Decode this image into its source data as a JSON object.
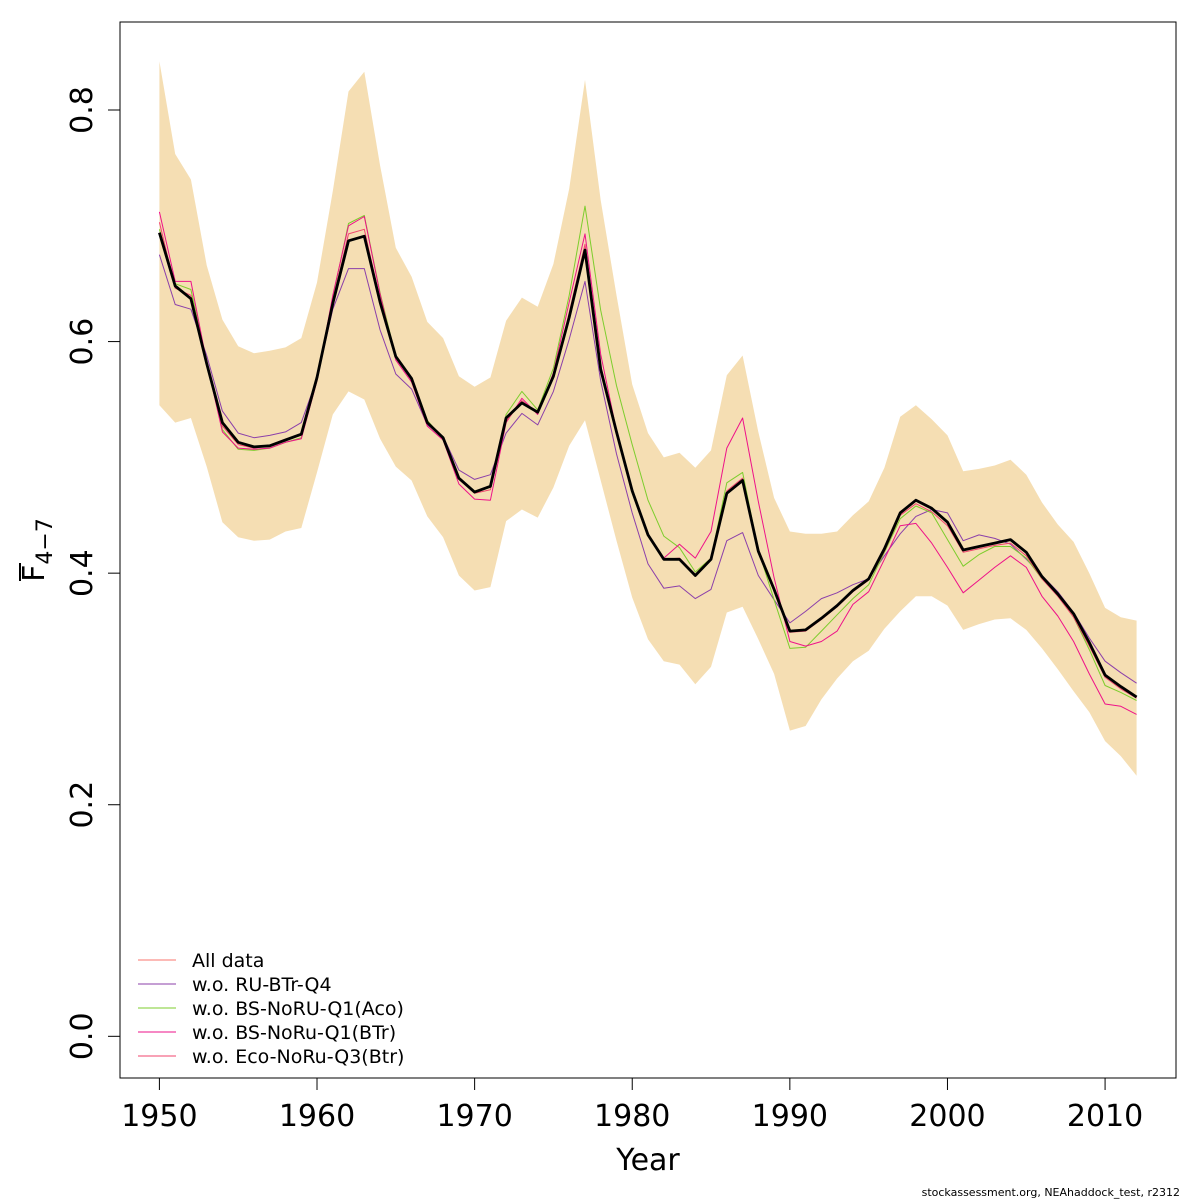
{
  "chart_data": {
    "type": "line",
    "xlabel": "Year",
    "ylabel_main": "F",
    "ylabel_sub": "4−7",
    "xlim": [
      1947.5,
      2014.5
    ],
    "ylim": [
      -0.036,
      0.876
    ],
    "x_ticks": [
      1950,
      1960,
      1970,
      1980,
      1990,
      2000,
      2010
    ],
    "y_ticks": [
      0.0,
      0.2,
      0.4,
      0.6,
      0.8
    ],
    "y_tick_labels": [
      "0.0",
      "0.2",
      "0.4",
      "0.6",
      "0.8"
    ],
    "grid": false,
    "legend_position": "bottom-left",
    "footer": "stockassessment.org, NEAhaddock_test, r2312",
    "x": [
      1950,
      1951,
      1952,
      1953,
      1954,
      1955,
      1956,
      1957,
      1958,
      1959,
      1960,
      1961,
      1962,
      1963,
      1964,
      1965,
      1966,
      1967,
      1968,
      1969,
      1970,
      1971,
      1972,
      1973,
      1974,
      1975,
      1976,
      1977,
      1978,
      1979,
      1980,
      1981,
      1982,
      1983,
      1984,
      1985,
      1986,
      1987,
      1988,
      1989,
      1990,
      1991,
      1992,
      1993,
      1994,
      1995,
      1996,
      1997,
      1998,
      1999,
      2000,
      2001,
      2002,
      2003,
      2004,
      2005,
      2006,
      2007,
      2008,
      2009,
      2010,
      2011,
      2012
    ],
    "band": {
      "color": "#F5DEB3",
      "upper": [
        0.842,
        0.762,
        0.74,
        0.666,
        0.619,
        0.596,
        0.59,
        0.592,
        0.595,
        0.603,
        0.651,
        0.73,
        0.816,
        0.833,
        0.752,
        0.681,
        0.656,
        0.617,
        0.603,
        0.57,
        0.561,
        0.569,
        0.618,
        0.638,
        0.63,
        0.667,
        0.732,
        0.826,
        0.722,
        0.64,
        0.563,
        0.521,
        0.5,
        0.504,
        0.491,
        0.506,
        0.571,
        0.588,
        0.522,
        0.465,
        0.436,
        0.434,
        0.434,
        0.436,
        0.45,
        0.462,
        0.491,
        0.535,
        0.545,
        0.533,
        0.519,
        0.488,
        0.49,
        0.493,
        0.498,
        0.485,
        0.461,
        0.442,
        0.427,
        0.4,
        0.37,
        0.362,
        0.359
      ],
      "lower": [
        0.545,
        0.53,
        0.534,
        0.492,
        0.444,
        0.431,
        0.428,
        0.429,
        0.436,
        0.439,
        0.487,
        0.537,
        0.557,
        0.55,
        0.516,
        0.492,
        0.48,
        0.449,
        0.431,
        0.398,
        0.385,
        0.388,
        0.445,
        0.455,
        0.448,
        0.474,
        0.51,
        0.532,
        0.48,
        0.428,
        0.379,
        0.343,
        0.324,
        0.321,
        0.304,
        0.319,
        0.366,
        0.371,
        0.343,
        0.313,
        0.264,
        0.268,
        0.291,
        0.309,
        0.324,
        0.333,
        0.352,
        0.367,
        0.38,
        0.38,
        0.372,
        0.351,
        0.356,
        0.36,
        0.361,
        0.351,
        0.335,
        0.317,
        0.298,
        0.28,
        0.255,
        0.242,
        0.225
      ]
    },
    "series": [
      {
        "name": "All data",
        "color": "#F8766D",
        "width": 1,
        "values": [
          0.694,
          0.648,
          0.637,
          0.581,
          0.53,
          0.513,
          0.509,
          0.51,
          0.515,
          0.52,
          0.569,
          0.633,
          0.687,
          0.691,
          0.634,
          0.587,
          0.568,
          0.53,
          0.517,
          0.482,
          0.47,
          0.475,
          0.534,
          0.547,
          0.539,
          0.57,
          0.621,
          0.679,
          0.576,
          0.522,
          0.471,
          0.433,
          0.412,
          0.412,
          0.398,
          0.412,
          0.469,
          0.48,
          0.419,
          0.386,
          0.35,
          0.351,
          0.361,
          0.372,
          0.385,
          0.395,
          0.421,
          0.452,
          0.463,
          0.456,
          0.444,
          0.42,
          0.423,
          0.426,
          0.429,
          0.418,
          0.397,
          0.382,
          0.365,
          0.34,
          0.312,
          0.302,
          0.293
        ]
      },
      {
        "name": "w.o. RU-BTr-Q4",
        "color": "#8B3FAA",
        "width": 1,
        "values": [
          0.675,
          0.632,
          0.628,
          0.588,
          0.54,
          0.521,
          0.517,
          0.519,
          0.522,
          0.53,
          0.568,
          0.628,
          0.663,
          0.663,
          0.61,
          0.572,
          0.559,
          0.528,
          0.518,
          0.489,
          0.481,
          0.485,
          0.521,
          0.538,
          0.528,
          0.557,
          0.602,
          0.652,
          0.566,
          0.503,
          0.452,
          0.408,
          0.387,
          0.389,
          0.378,
          0.386,
          0.428,
          0.435,
          0.398,
          0.377,
          0.357,
          0.367,
          0.378,
          0.383,
          0.39,
          0.395,
          0.415,
          0.434,
          0.449,
          0.455,
          0.452,
          0.428,
          0.433,
          0.43,
          0.425,
          0.412,
          0.398,
          0.384,
          0.366,
          0.344,
          0.324,
          0.314,
          0.305
        ]
      },
      {
        "name": "w.o. BS-NoRU-Q1(Aco)",
        "color": "#7CCD2C",
        "width": 1,
        "values": [
          0.697,
          0.65,
          0.645,
          0.582,
          0.524,
          0.507,
          0.506,
          0.508,
          0.513,
          0.517,
          0.566,
          0.638,
          0.702,
          0.709,
          0.642,
          0.587,
          0.568,
          0.532,
          0.516,
          0.482,
          0.471,
          0.474,
          0.537,
          0.557,
          0.541,
          0.577,
          0.64,
          0.717,
          0.627,
          0.562,
          0.511,
          0.463,
          0.432,
          0.422,
          0.401,
          0.413,
          0.478,
          0.487,
          0.42,
          0.377,
          0.335,
          0.336,
          0.35,
          0.364,
          0.378,
          0.39,
          0.418,
          0.447,
          0.458,
          0.452,
          0.429,
          0.406,
          0.416,
          0.423,
          0.423,
          0.413,
          0.395,
          0.382,
          0.362,
          0.334,
          0.303,
          0.297,
          0.29
        ]
      },
      {
        "name": "w.o. BS-NoRu-Q1(BTr)",
        "color": "#EE1289",
        "width": 1,
        "values": [
          0.712,
          0.652,
          0.652,
          0.582,
          0.522,
          0.508,
          0.507,
          0.508,
          0.513,
          0.516,
          0.566,
          0.64,
          0.7,
          0.708,
          0.641,
          0.584,
          0.565,
          0.527,
          0.515,
          0.477,
          0.464,
          0.463,
          0.53,
          0.551,
          0.537,
          0.573,
          0.634,
          0.693,
          0.589,
          0.523,
          0.47,
          0.434,
          0.413,
          0.425,
          0.413,
          0.436,
          0.508,
          0.534,
          0.462,
          0.396,
          0.341,
          0.337,
          0.341,
          0.35,
          0.373,
          0.384,
          0.412,
          0.441,
          0.443,
          0.426,
          0.405,
          0.383,
          0.394,
          0.405,
          0.415,
          0.405,
          0.38,
          0.363,
          0.341,
          0.313,
          0.287,
          0.285,
          0.278
        ]
      },
      {
        "name": "w.o. Eco-NoRu-Q3(Btr)",
        "color": "#F0466E",
        "width": 1,
        "values": [
          0.703,
          0.646,
          0.64,
          0.581,
          0.527,
          0.511,
          0.508,
          0.51,
          0.515,
          0.519,
          0.568,
          0.635,
          0.693,
          0.697,
          0.636,
          0.586,
          0.567,
          0.53,
          0.516,
          0.481,
          0.469,
          0.472,
          0.531,
          0.549,
          0.538,
          0.569,
          0.625,
          0.684,
          0.579,
          0.523,
          0.471,
          0.433,
          0.412,
          0.413,
          0.399,
          0.413,
          0.471,
          0.482,
          0.421,
          0.385,
          0.349,
          0.35,
          0.36,
          0.371,
          0.384,
          0.394,
          0.419,
          0.45,
          0.46,
          0.453,
          0.441,
          0.418,
          0.421,
          0.424,
          0.426,
          0.415,
          0.395,
          0.38,
          0.362,
          0.337,
          0.31,
          0.3,
          0.292
        ]
      },
      {
        "name": "",
        "color": "#000000",
        "width": 2.8,
        "values": [
          0.694,
          0.648,
          0.637,
          0.581,
          0.53,
          0.513,
          0.509,
          0.51,
          0.515,
          0.52,
          0.569,
          0.633,
          0.687,
          0.691,
          0.634,
          0.587,
          0.568,
          0.53,
          0.517,
          0.482,
          0.47,
          0.475,
          0.534,
          0.547,
          0.539,
          0.57,
          0.621,
          0.679,
          0.576,
          0.522,
          0.471,
          0.433,
          0.412,
          0.412,
          0.398,
          0.412,
          0.469,
          0.48,
          0.419,
          0.386,
          0.35,
          0.351,
          0.361,
          0.372,
          0.385,
          0.395,
          0.421,
          0.452,
          0.463,
          0.456,
          0.444,
          0.42,
          0.423,
          0.426,
          0.429,
          0.418,
          0.397,
          0.382,
          0.365,
          0.34,
          0.312,
          0.302,
          0.293
        ]
      }
    ],
    "legend": [
      {
        "label": "All data",
        "color": "#F8766D"
      },
      {
        "label": "w.o. RU-BTr-Q4",
        "color": "#8B3FAA"
      },
      {
        "label": "w.o. BS-NoRU-Q1(Aco)",
        "color": "#7CCD2C"
      },
      {
        "label": "w.o. BS-NoRu-Q1(BTr)",
        "color": "#EE1289"
      },
      {
        "label": "w.o. Eco-NoRu-Q3(Btr)",
        "color": "#F0466E"
      }
    ]
  }
}
